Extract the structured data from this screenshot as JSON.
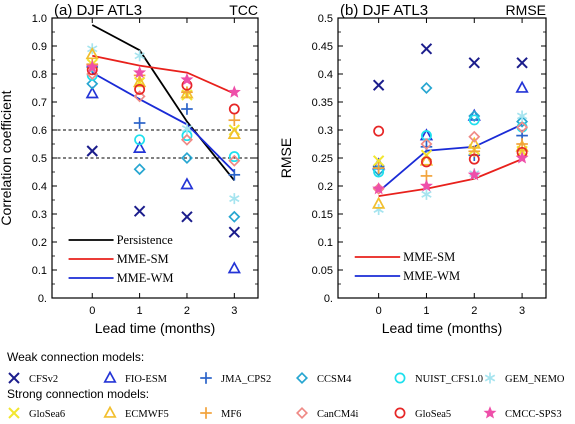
{
  "chart_data": [
    {
      "type": "scatter",
      "title": "(a) DJF ATL3",
      "corner_label": "TCC",
      "xlabel": "Lead time (months)",
      "ylabel": "Correlation coefficient",
      "x_ticks": [
        "0",
        "1",
        "2",
        "3"
      ],
      "y_ticks": [
        "0.",
        "0.1",
        "0.2",
        "0.3",
        "0.4",
        "0.5",
        "0.6",
        "0.7",
        "0.8",
        "0.9",
        "1.0"
      ],
      "xlim": [
        -0.85,
        3.5
      ],
      "ylim": [
        0,
        1.0
      ],
      "reference_lines": [
        0.5,
        0.6
      ],
      "lines": [
        {
          "name": "Persistence",
          "color": "#000000",
          "x": [
            0,
            1,
            2,
            3
          ],
          "y": [
            0.975,
            0.885,
            0.63,
            0.42
          ]
        },
        {
          "name": "MME-SM",
          "color": "#e8211c",
          "x": [
            0,
            1,
            2,
            3
          ],
          "y": [
            0.865,
            0.83,
            0.805,
            0.73
          ]
        },
        {
          "name": "MME-WM",
          "color": "#1a2bd6",
          "x": [
            0,
            1,
            2,
            3
          ],
          "y": [
            0.805,
            0.71,
            0.62,
            0.45
          ]
        }
      ],
      "points": {
        "CFSv2": [
          0.525,
          0.31,
          0.29,
          0.235
        ],
        "FIO-ESM": [
          0.73,
          0.535,
          0.405,
          0.105
        ],
        "JMA_CPS2": [
          0.825,
          0.625,
          0.675,
          0.44
        ],
        "CCSM4": [
          0.765,
          0.46,
          0.5,
          0.29
        ],
        "NUIST_CFS1.0": [
          0.795,
          0.565,
          0.58,
          0.505
        ],
        "GEM_NEMO": [
          0.89,
          0.865,
          0.605,
          0.355
        ],
        "GloSea6": [
          0.835,
          0.77,
          0.725,
          0.6
        ],
        "ECMWF5": [
          0.87,
          0.77,
          0.73,
          0.585
        ],
        "MF6": [
          0.835,
          0.795,
          0.735,
          0.635
        ],
        "CanCM4i": [
          0.8,
          0.72,
          0.565,
          0.49
        ],
        "GloSea5": [
          0.815,
          0.745,
          0.76,
          0.675
        ],
        "CMCC-SPS3": [
          0.825,
          0.805,
          0.78,
          0.735
        ]
      },
      "legend": [
        "Persistence",
        "MME-SM",
        "MME-WM"
      ],
      "legend_placement": "bottom-left"
    },
    {
      "type": "scatter",
      "title": "(b) DJF ATL3",
      "corner_label": "RMSE",
      "xlabel": "Lead time (months)",
      "ylabel": "RMSE",
      "x_ticks": [
        "0",
        "1",
        "2",
        "3"
      ],
      "y_ticks": [
        "0.",
        "0.05",
        "0.1",
        "0.15",
        "0.2",
        "0.25",
        "0.3",
        "0.35",
        "0.4",
        "0.45",
        "0.5"
      ],
      "xlim": [
        -0.85,
        3.5
      ],
      "ylim": [
        0,
        0.5
      ],
      "lines": [
        {
          "name": "MME-SM",
          "color": "#e8211c",
          "x": [
            0,
            1,
            2,
            3
          ],
          "y": [
            0.182,
            0.195,
            0.213,
            0.248
          ]
        },
        {
          "name": "MME-WM",
          "color": "#1a2bd6",
          "x": [
            0,
            1,
            2,
            3
          ],
          "y": [
            0.19,
            0.263,
            0.27,
            0.31
          ]
        }
      ],
      "points": {
        "CFSv2": [
          0.38,
          0.445,
          0.42,
          0.42
        ],
        "FIO-ESM": [
          0.238,
          0.29,
          0.325,
          0.375
        ],
        "JMA_CPS2": [
          0.235,
          0.27,
          0.255,
          0.29
        ],
        "CCSM4": [
          0.228,
          0.375,
          0.325,
          0.315
        ],
        "NUIST_CFS1.0": [
          0.225,
          0.29,
          0.318,
          0.305
        ],
        "GEM_NEMO": [
          0.158,
          0.185,
          0.222,
          0.325
        ],
        "GloSea6": [
          0.245,
          0.255,
          0.265,
          0.262
        ],
        "ECMWF5": [
          0.168,
          0.245,
          0.275,
          0.27
        ],
        "MF6": [
          0.232,
          0.218,
          0.262,
          0.275
        ],
        "CanCM4i": [
          0.195,
          0.275,
          0.288,
          0.305
        ],
        "GloSea5": [
          0.298,
          0.243,
          0.248,
          0.26
        ],
        "CMCC-SPS3": [
          0.195,
          0.2,
          0.22,
          0.25
        ]
      },
      "legend": [
        "MME-SM",
        "MME-WM"
      ],
      "legend_placement": "bottom-left"
    }
  ],
  "model_legend": {
    "weak_title": "Weak connection models:",
    "strong_title": "Strong connection models:",
    "weak": [
      {
        "name": "CFSv2",
        "marker": "x",
        "color": "#1b1d8c"
      },
      {
        "name": "FIO-ESM",
        "marker": "triangle",
        "color": "#2434d6"
      },
      {
        "name": "JMA_CPS2",
        "marker": "plus",
        "color": "#2a63c9"
      },
      {
        "name": "CCSM4",
        "marker": "diamond",
        "color": "#27a6d1"
      },
      {
        "name": "NUIST_CFS1.0",
        "marker": "circle",
        "color": "#1ee0ee"
      },
      {
        "name": "GEM_NEMO",
        "marker": "asterisk",
        "color": "#a6e4ef"
      }
    ],
    "strong": [
      {
        "name": "GloSea6",
        "marker": "x",
        "color": "#f2e630"
      },
      {
        "name": "ECMWF5",
        "marker": "triangle",
        "color": "#f2bf2e"
      },
      {
        "name": "MF6",
        "marker": "plus",
        "color": "#f2a33a"
      },
      {
        "name": "CanCM4i",
        "marker": "diamond",
        "color": "#ef8a86"
      },
      {
        "name": "GloSea5",
        "marker": "circle",
        "color": "#e62626"
      },
      {
        "name": "CMCC-SPS3",
        "marker": "star",
        "color": "#ee4fa9"
      }
    ]
  }
}
